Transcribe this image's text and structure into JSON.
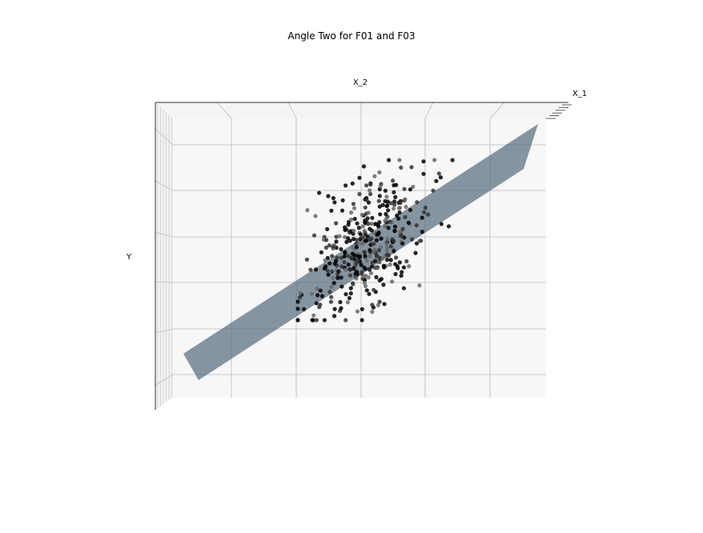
{
  "chart_data": {
    "type": "scatter",
    "title": "Angle Two for F01 and F03",
    "xlabel": "X_1",
    "zlabel": "X_2",
    "ylabel": "Y",
    "projection": "3d",
    "grid": true,
    "tick_labels": "hidden",
    "colors": {
      "points": "#000000",
      "plane": "#4d6478",
      "pane_back": "#f7f7f7",
      "pane_side": "#f2f2f2",
      "gridline": "#b8b8b8"
    },
    "series": [
      {
        "kind": "points",
        "count": 400
      },
      {
        "kind": "fitted-plane"
      }
    ]
  }
}
